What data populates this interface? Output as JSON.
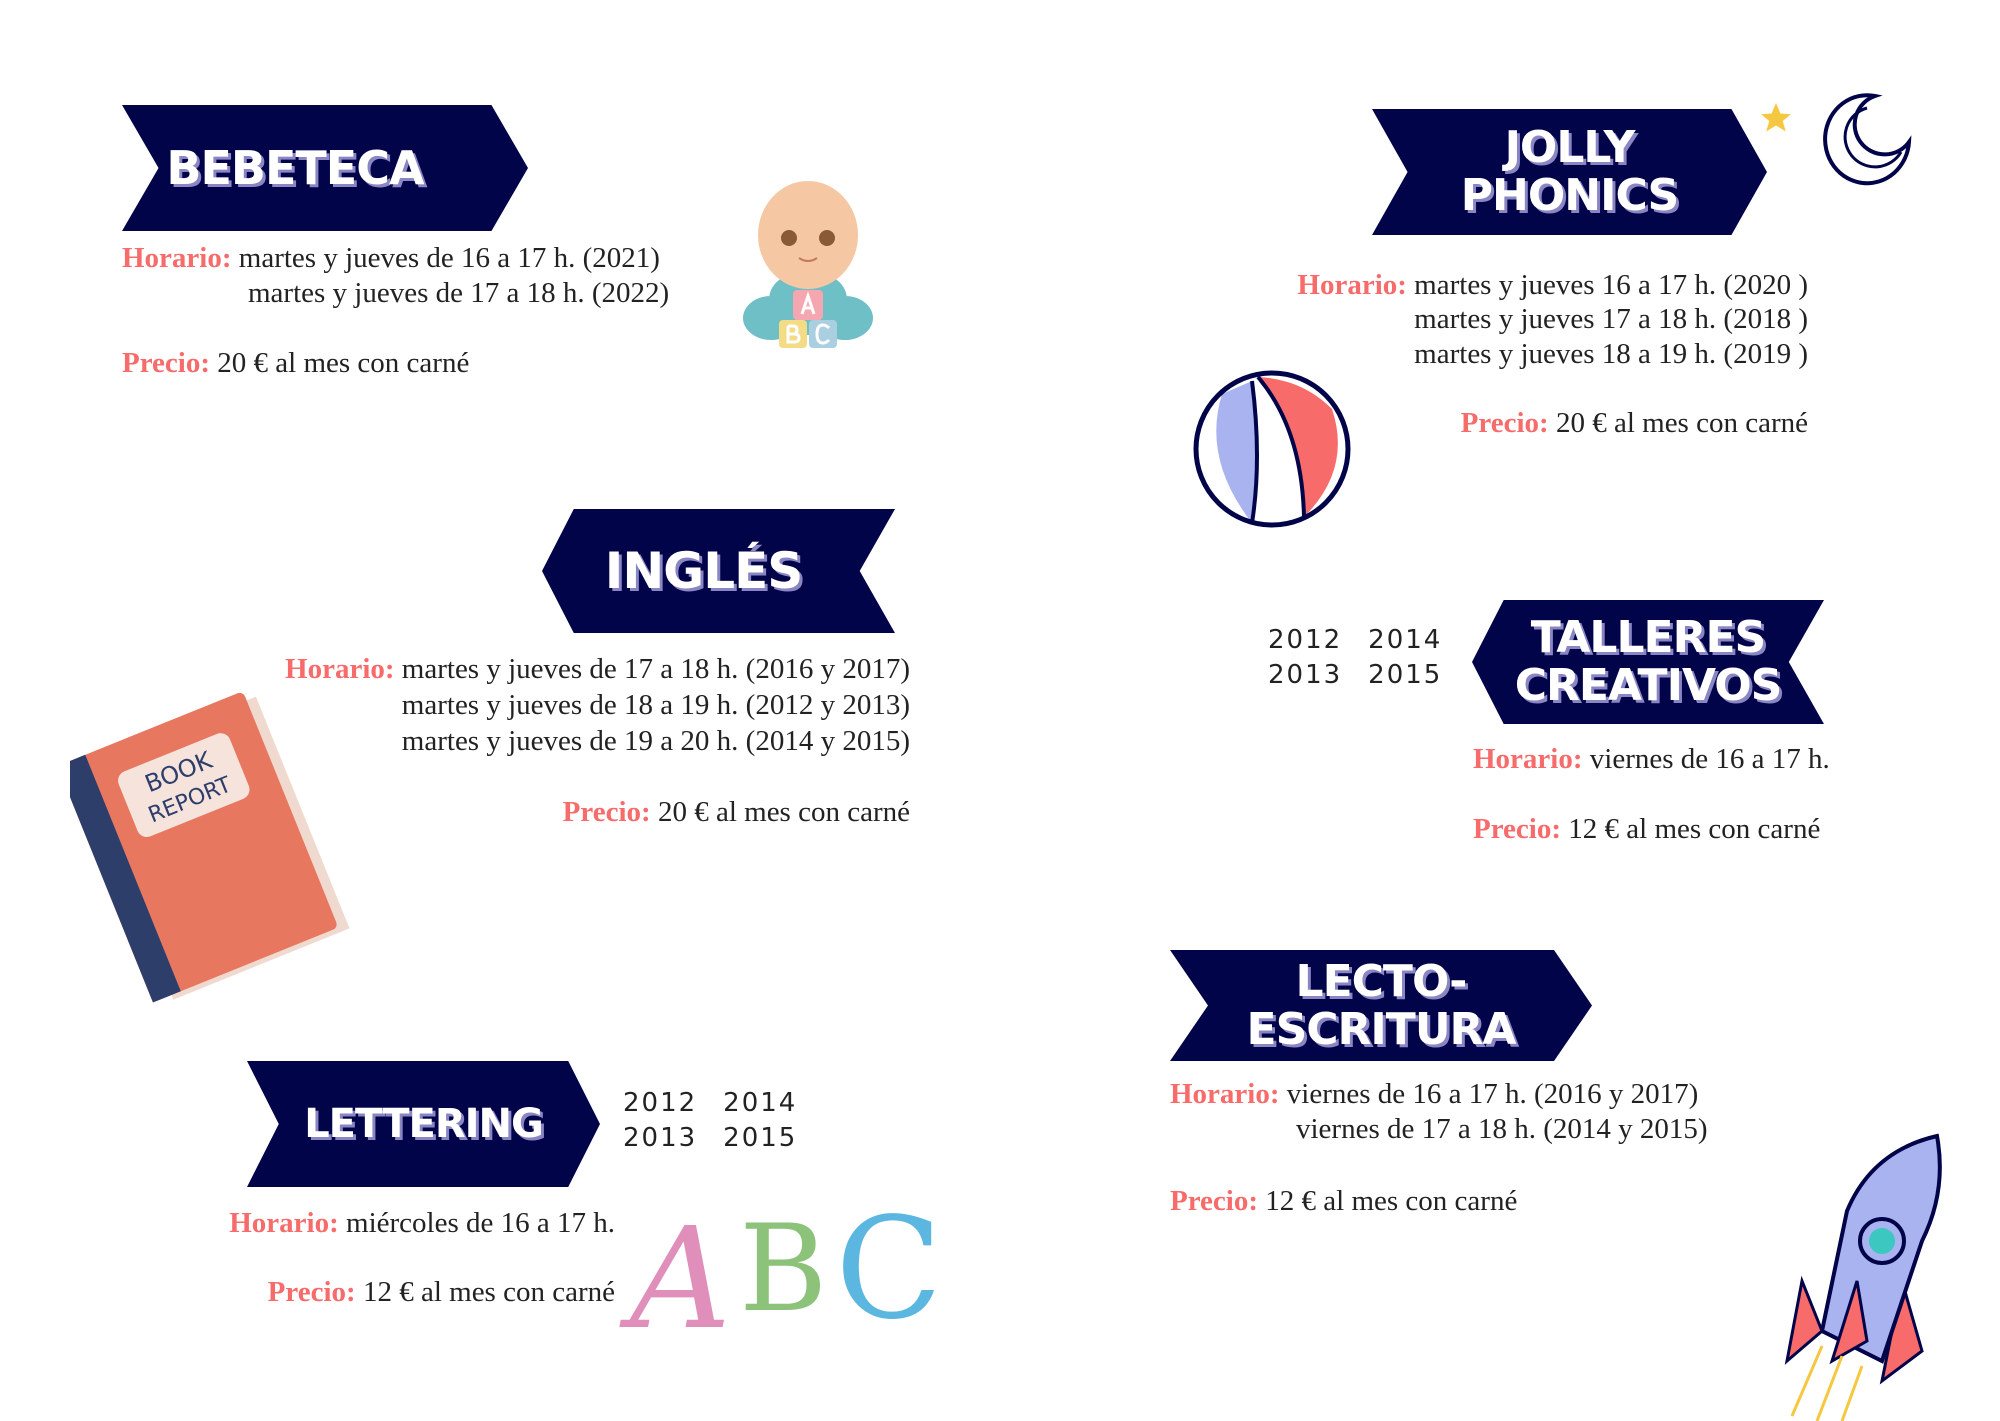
{
  "colors": {
    "navy": "#02044a",
    "coral": "#f76b6b"
  },
  "labels": {
    "horario": "Horario:",
    "precio": "Precio:"
  },
  "bebeteca": {
    "title": "BEBETECA",
    "horario": [
      "martes y jueves de 16 a 17 h. (2021)",
      "martes y jueves de 17 a 18 h. (2022)"
    ],
    "precio": "20 € al mes con carné"
  },
  "jolly": {
    "title_1": "JOLLY",
    "title_2": "PHONICS",
    "horario": [
      "martes y jueves 16 a 17 h. (2020 )",
      "martes y jueves 17 a 18 h. (2018 )",
      "martes y jueves 18 a 19 h. (2019 )"
    ],
    "precio": "20 € al mes con carné"
  },
  "ingles": {
    "title": "INGLÉS",
    "horario": [
      "martes y jueves de 17 a 18 h. (2016 y 2017)",
      "martes y jueves de 18 a 19 h. (2012 y 2013)",
      "martes y jueves de 19 a 20 h. (2014 y 2015)"
    ],
    "precio": "20 € al mes con carné"
  },
  "talleres": {
    "title_1": "TALLERES",
    "title_2": "CREATIVOS",
    "years": [
      "2012",
      "2014",
      "2013",
      "2015"
    ],
    "horario": [
      "viernes de 16 a 17 h."
    ],
    "precio": "12 € al mes con carné"
  },
  "lecto": {
    "title_1": "LECTO-",
    "title_2": "ESCRITURA",
    "horario": [
      "viernes de 16 a 17 h. (2016 y 2017)",
      "viernes de 17 a 18 h. (2014 y 2015)"
    ],
    "precio": "12 € al mes con carné"
  },
  "lettering": {
    "title": "LETTERING",
    "years": [
      "2012",
      "2014",
      "2013",
      "2015"
    ],
    "horario": [
      "miércoles de 16  a 17 h."
    ],
    "precio": "12 € al mes con carné"
  },
  "book": {
    "label_1": "BOOK",
    "label_2": "REPORT"
  },
  "abc": {
    "letters": [
      "A",
      "B",
      "C"
    ]
  }
}
